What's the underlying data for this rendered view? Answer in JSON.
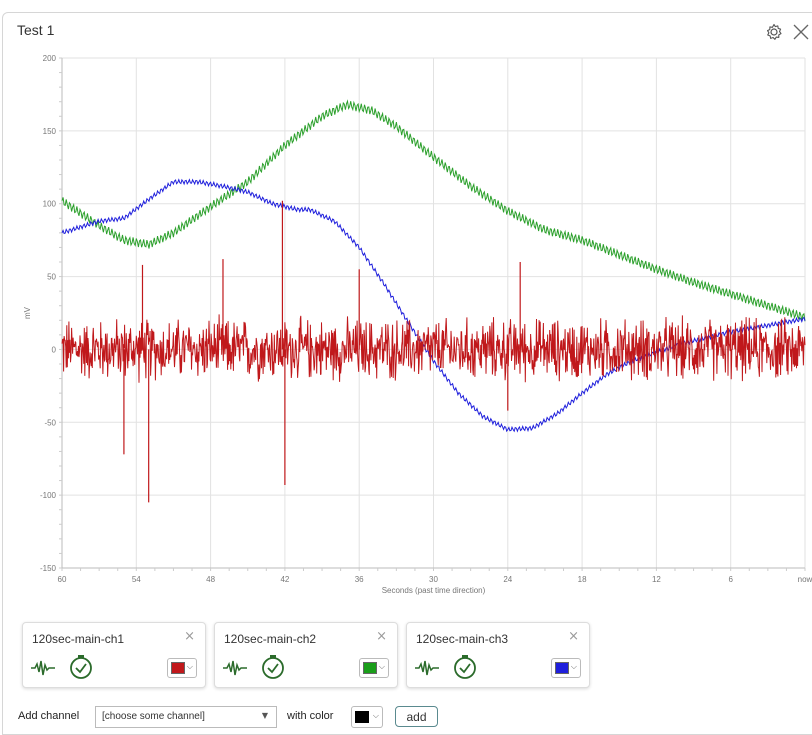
{
  "panel": {
    "title": "Test 1",
    "icons": {
      "settings": "gear-icon",
      "close": "close-icon"
    }
  },
  "chart_data": {
    "type": "line",
    "xlabel": "Seconds (past time direction)",
    "ylabel": "mV",
    "xlim": [
      60,
      0
    ],
    "ylim": [
      -150,
      200
    ],
    "x_tick_labels": [
      "60",
      "54",
      "48",
      "42",
      "36",
      "30",
      "24",
      "18",
      "12",
      "6",
      "now"
    ],
    "x_tick_values": [
      60,
      54,
      48,
      42,
      36,
      30,
      24,
      18,
      12,
      6,
      0
    ],
    "y_ticks": [
      200,
      150,
      100,
      50,
      0,
      -50,
      -100,
      -150
    ],
    "grid": true,
    "series": [
      {
        "color": "#2ca02c",
        "noise_amplitude": 3,
        "x": [
          60,
          57,
          55,
          53,
          51,
          48,
          45,
          42,
          39,
          37,
          35,
          33,
          30,
          27,
          24,
          21,
          18,
          15,
          12,
          9,
          6,
          3,
          0
        ],
        "y": [
          102,
          85,
          75,
          72,
          80,
          98,
          115,
          140,
          160,
          168,
          164,
          153,
          132,
          112,
          95,
          82,
          75,
          65,
          55,
          46,
          38,
          30,
          22
        ]
      },
      {
        "color": "#1f1fdc",
        "noise_amplitude": 1.5,
        "x": [
          60,
          57,
          55,
          53,
          51,
          49,
          47,
          45,
          43,
          41,
          40,
          38,
          36,
          34,
          32,
          30,
          28,
          26,
          24,
          22,
          20,
          18,
          16,
          14,
          12,
          10,
          8,
          6,
          4,
          2,
          0
        ],
        "y": [
          80,
          88,
          90,
          103,
          115,
          115,
          112,
          108,
          100,
          96,
          96,
          88,
          70,
          45,
          18,
          -8,
          -30,
          -46,
          -55,
          -54,
          -44,
          -30,
          -17,
          -8,
          -2,
          4,
          8,
          12,
          15,
          18,
          21
        ]
      },
      {
        "color": "#c0181b",
        "noise_amplitude": 18,
        "spikes": [
          {
            "x": 53,
            "y": -105
          },
          {
            "x": 53.5,
            "y": 58
          },
          {
            "x": 55,
            "y": -72
          },
          {
            "x": 47,
            "y": 62
          },
          {
            "x": 42.2,
            "y": 102
          },
          {
            "x": 42,
            "y": -93
          },
          {
            "x": 36,
            "y": 55
          },
          {
            "x": 23,
            "y": 60
          },
          {
            "x": 24,
            "y": -42
          }
        ],
        "x": [
          60,
          0
        ],
        "y": [
          0,
          0
        ]
      }
    ]
  },
  "channels": [
    {
      "name": "120sec-main-ch1",
      "color": "#c0181b",
      "close_label": "×"
    },
    {
      "name": "120sec-main-ch2",
      "color": "#1a9e1a",
      "close_label": "×"
    },
    {
      "name": "120sec-main-ch3",
      "color": "#1f1fdc",
      "close_label": "×"
    }
  ],
  "add_channel": {
    "label": "Add channel",
    "select_value": "[choose some channel]",
    "with_color_label": "with color",
    "color": "#000000",
    "button_label": "add"
  }
}
